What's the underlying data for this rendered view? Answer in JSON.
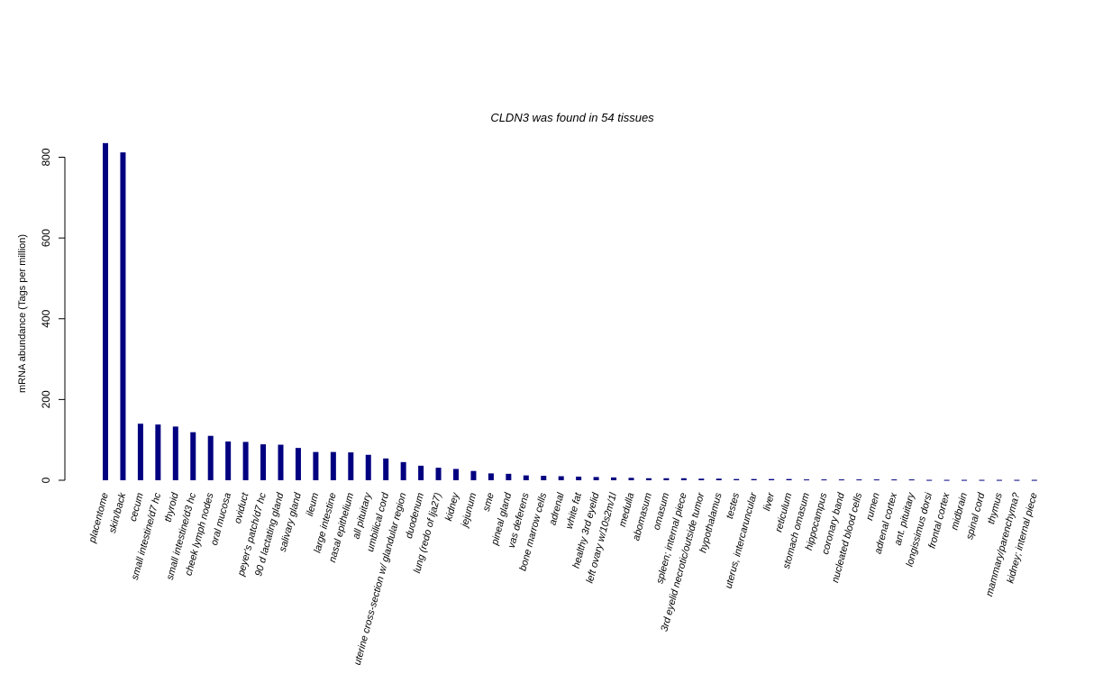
{
  "chart_data": {
    "type": "bar",
    "title": "CLDN3  was found in  54  tissues",
    "xlabel": "",
    "ylabel": "mRNA abundance (Tags per million)",
    "ylim": [
      0,
      840
    ],
    "yticks": [
      0,
      200,
      400,
      600,
      800
    ],
    "grid": false,
    "bar_color": "#000080",
    "categories": [
      "placentome",
      "skin/back",
      "cecum",
      "small intestine/d7 hc",
      "thyroid",
      "small intestine/d3 hc",
      "cheek lymph nodes",
      "oral mucosa",
      "oviduct",
      "peyer's patch/d7 hc",
      "90 d lactating gland",
      "salivary gland",
      "ileum",
      "large intestine",
      "nasal epithelium",
      "all pituitary",
      "umbilical cord",
      "uterine cross-section w/ glandular region",
      "duodenum",
      "lung (redo of lja27)",
      "kidney",
      "jejunum",
      "sme",
      "pineal gland",
      "vas deferens",
      "bone marrow cells",
      "adrenal",
      "white fat",
      "healthy 3rd eyelid",
      "left ovary w/10s2m/1l",
      "medulla",
      "abomasum",
      "omasum",
      "spleen; internal piece",
      "3rd eyelid necrotic/outside tumor",
      "hypothalamus",
      "testes",
      "uterus, intercaruncular",
      "liver",
      "reticulum",
      "stomach omasum",
      "hippocampus",
      "coronary band",
      "nucleated blood cells",
      "rumen",
      "adrenal cortex",
      "ant. pituitary",
      "longissimus dorsi",
      "frontal cortex",
      "midbrain",
      "spinal cord",
      "thymus",
      "mammary/parenchyma?",
      "kidney; internal piece"
    ],
    "values": [
      835,
      812,
      140,
      138,
      133,
      119,
      110,
      96,
      95,
      89,
      88,
      80,
      70,
      70,
      69,
      63,
      54,
      45,
      36,
      31,
      28,
      23,
      17,
      16,
      12,
      11,
      10,
      9,
      8,
      7,
      6,
      5,
      5,
      5,
      4,
      4,
      3,
      3,
      3,
      3,
      2,
      2,
      2,
      2,
      2,
      2,
      2,
      1,
      1,
      1,
      1,
      1,
      1,
      1
    ]
  }
}
